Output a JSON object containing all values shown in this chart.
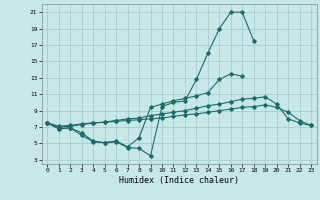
{
  "x": [
    0,
    1,
    2,
    3,
    4,
    5,
    6,
    7,
    8,
    9,
    10,
    11,
    12,
    13,
    14,
    15,
    16,
    17,
    18,
    19,
    20,
    21,
    22,
    23
  ],
  "line1": [
    7.5,
    6.8,
    6.9,
    6.0,
    5.2,
    5.1,
    5.2,
    4.5,
    4.4,
    3.5,
    9.5,
    10.0,
    10.2,
    12.8,
    16.0,
    19.0,
    21.0,
    21.0,
    17.5,
    null,
    null,
    null,
    null,
    null
  ],
  "line2": [
    7.5,
    6.8,
    6.9,
    6.3,
    5.3,
    5.1,
    5.3,
    4.6,
    5.7,
    9.4,
    9.8,
    10.2,
    10.5,
    10.8,
    11.2,
    12.8,
    13.5,
    13.2,
    null,
    null,
    null,
    null,
    null,
    null
  ],
  "line3": [
    7.5,
    7.0,
    7.1,
    7.3,
    7.5,
    7.6,
    7.8,
    8.0,
    8.1,
    8.4,
    8.6,
    8.8,
    9.0,
    9.3,
    9.6,
    9.8,
    10.1,
    10.4,
    10.5,
    10.7,
    9.8,
    8.0,
    7.5,
    7.2
  ],
  "line4": [
    7.5,
    7.1,
    7.2,
    7.4,
    7.5,
    7.6,
    7.7,
    7.8,
    7.9,
    8.0,
    8.1,
    8.3,
    8.5,
    8.6,
    8.8,
    9.0,
    9.2,
    9.4,
    9.5,
    9.7,
    9.4,
    8.8,
    7.8,
    7.2
  ],
  "line_color": "#1a6b6b",
  "bg_color": "#c8e8e8",
  "grid_color": "#a0c8c8",
  "xlabel": "Humidex (Indice chaleur)",
  "xlim": [
    -0.5,
    23.5
  ],
  "ylim": [
    2.5,
    22
  ],
  "yticks": [
    3,
    5,
    7,
    9,
    11,
    13,
    15,
    17,
    19,
    21
  ],
  "xticks": [
    0,
    1,
    2,
    3,
    4,
    5,
    6,
    7,
    8,
    9,
    10,
    11,
    12,
    13,
    14,
    15,
    16,
    17,
    18,
    19,
    20,
    21,
    22,
    23
  ]
}
